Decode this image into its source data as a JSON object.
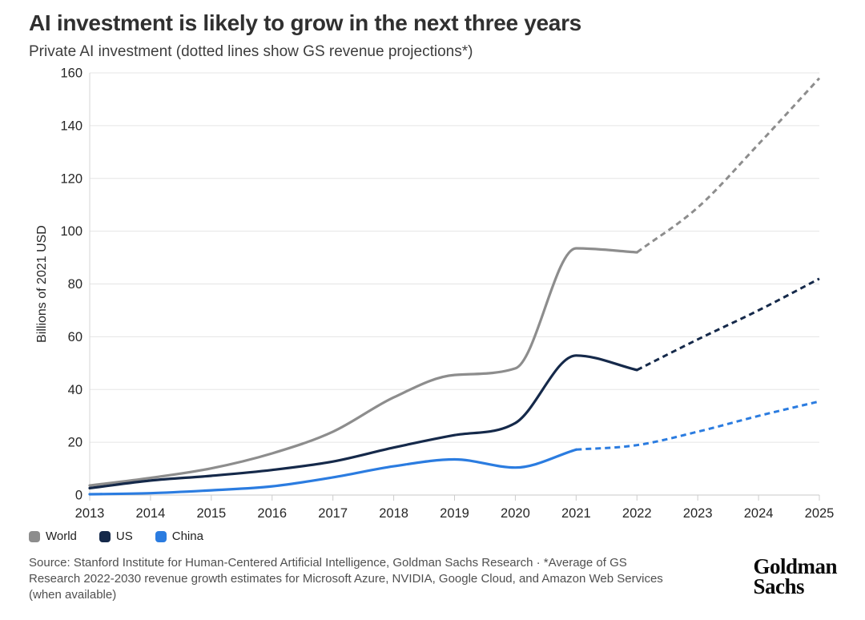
{
  "header": {
    "title": "AI investment is likely to grow in the next three years",
    "subtitle": "Private AI investment (dotted lines show GS revenue projections*)"
  },
  "chart_data": {
    "type": "line",
    "title": "AI investment is likely to grow in the next three years",
    "subtitle": "Private AI investment (dotted lines show GS revenue projections*)",
    "xlabel": "",
    "ylabel": "Billions of 2021 USD",
    "ylim": [
      0,
      160
    ],
    "yticks": [
      0,
      20,
      40,
      60,
      80,
      100,
      120,
      140,
      160
    ],
    "grid": "horizontal",
    "legend_position": "bottom-left",
    "projection_style": "dotted",
    "x": [
      2013,
      2014,
      2015,
      2016,
      2017,
      2018,
      2019,
      2020,
      2021,
      2022,
      2023,
      2024,
      2025
    ],
    "series": [
      {
        "name": "World",
        "color": "#8d8d8d",
        "projection_from": 2022,
        "values": [
          3.6,
          6.5,
          10.1,
          15.8,
          24,
          37,
          45.5,
          48,
          93.5,
          92,
          109,
          133,
          158
        ]
      },
      {
        "name": "US",
        "color": "#15294a",
        "projection_from": 2022,
        "values": [
          2.6,
          5.5,
          7.3,
          9.5,
          12.7,
          18,
          22.7,
          27.3,
          52.9,
          47.4,
          59,
          70,
          82
        ]
      },
      {
        "name": "China",
        "color": "#2b7ce0",
        "projection_from": 2021,
        "values": [
          0.3,
          0.7,
          1.8,
          3.3,
          6.7,
          10.9,
          13.5,
          10.4,
          17.2,
          18.9,
          24,
          30,
          35.5
        ]
      }
    ]
  },
  "legend": {
    "items": [
      {
        "label": "World",
        "color": "#8d8d8d"
      },
      {
        "label": "US",
        "color": "#15294a"
      },
      {
        "label": "China",
        "color": "#2b7ce0"
      }
    ]
  },
  "footer": {
    "source": "Source: Stanford Institute for Human-Centered Artificial Intelligence, Goldman Sachs Research · *Average of GS Research 2022-2030 revenue growth estimates for Microsoft Azure, NVIDIA, Google Cloud, and Amazon Web Services (when available)",
    "brand_line1": "Goldman",
    "brand_line2": "Sachs"
  }
}
